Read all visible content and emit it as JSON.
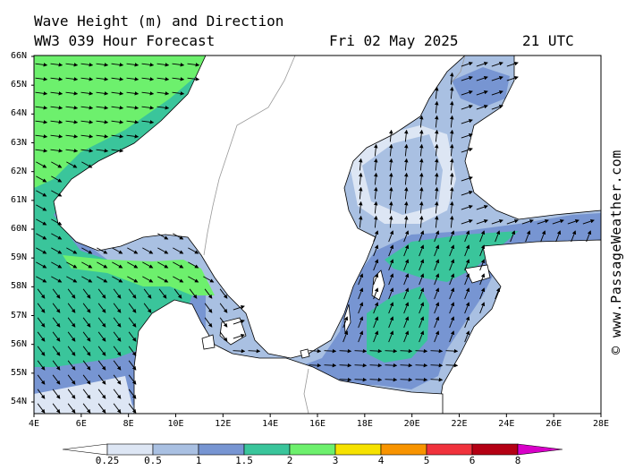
{
  "title": {
    "line1": "Wave Height (m) and Direction",
    "line2": "WW3 039 Hour Forecast",
    "date": "Fri 02 May 2025",
    "time": "21 UTC"
  },
  "credit": "© www.PassageWeather.com",
  "lat_labels": [
    "66N",
    "65N",
    "64N",
    "63N",
    "62N",
    "61N",
    "60N",
    "59N",
    "58N",
    "57N",
    "56N",
    "55N",
    "54N"
  ],
  "lon_labels": [
    "4E",
    "6E",
    "8E",
    "10E",
    "12E",
    "14E",
    "16E",
    "18E",
    "20E",
    "22E",
    "24E",
    "26E",
    "28E"
  ],
  "legend": {
    "labels": [
      "0.25",
      "0.5",
      "1",
      "1.5",
      "2",
      "3",
      "4",
      "5",
      "6",
      "8"
    ],
    "colors": [
      "#ffffff",
      "#dde6f4",
      "#a9c0e2",
      "#7795d2",
      "#3ac59b",
      "#6df06d",
      "#f6e200",
      "#f89400",
      "#f0323c",
      "#b40014",
      "#d800c8"
    ]
  },
  "colors": {
    "land": "#ffffff",
    "coast": "#000000",
    "border": "#999999"
  }
}
